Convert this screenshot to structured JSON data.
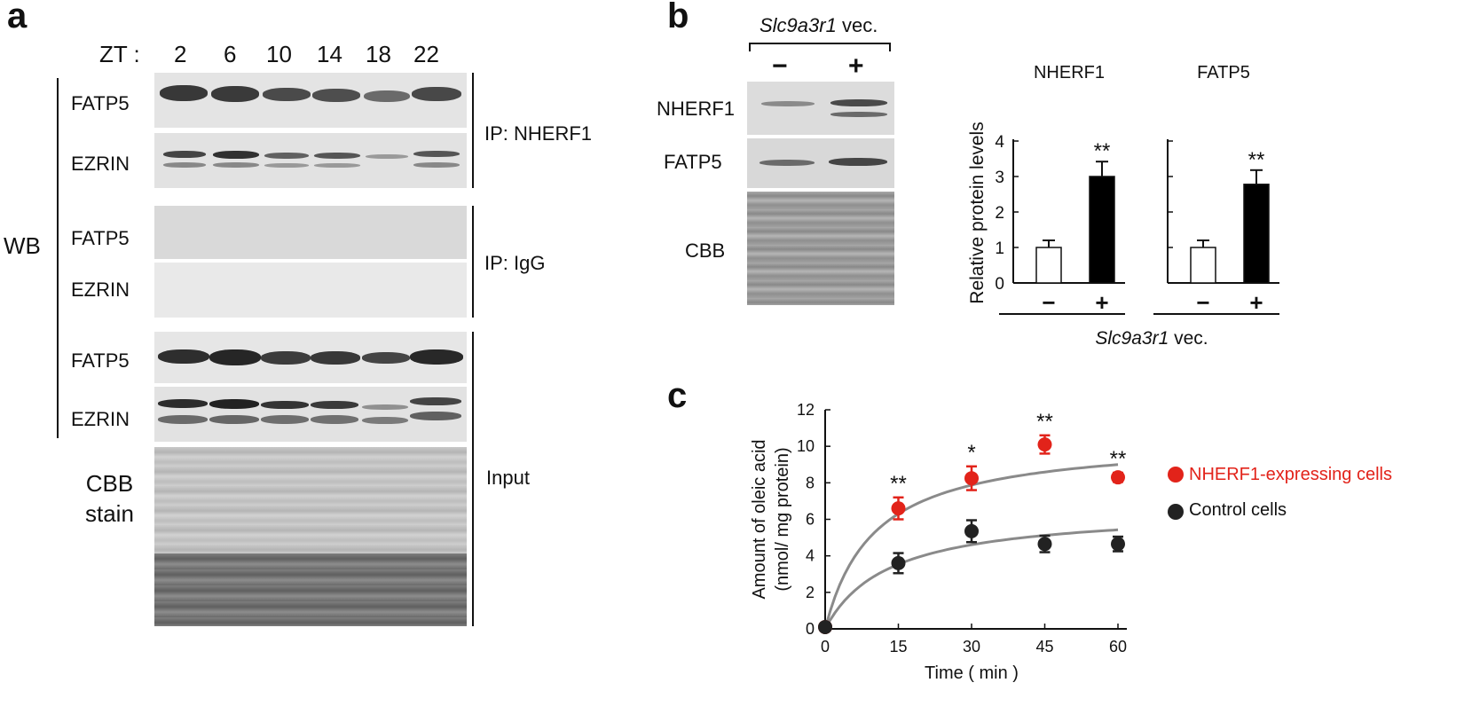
{
  "panel_a": {
    "label": "a",
    "zt_label": "ZT :",
    "zt_values": [
      "2",
      "6",
      "10",
      "14",
      "18",
      "22"
    ],
    "rows": [
      "FATP5",
      "EZRIN",
      "FATP5",
      "EZRIN",
      "FATP5",
      "EZRIN"
    ],
    "cbb": [
      "CBB",
      "stain"
    ],
    "wb_label": "WB",
    "ip_nherf1": "IP: NHERF1",
    "ip_igg": "IP: IgG",
    "input": "Input"
  },
  "panel_b": {
    "label": "b",
    "vec_italic": "Slc9a3r1",
    "vec_rest": " vec.",
    "minus": "−",
    "plus": "+",
    "rows": [
      "NHERF1",
      "FATP5",
      "CBB"
    ]
  },
  "panel_c_label": "c",
  "chart_data": [
    {
      "type": "bar",
      "title": "NHERF1",
      "ylabel": "Relative protein levels",
      "ylim": [
        0,
        4
      ],
      "yticks": [
        "0",
        "1",
        "2",
        "3",
        "4"
      ],
      "categories": [
        "−",
        "+"
      ],
      "values": [
        1.0,
        3.0
      ],
      "errors": [
        0.2,
        0.42
      ],
      "significance": [
        "",
        "**"
      ],
      "bar_colors": [
        "#ffffff",
        "#000000"
      ],
      "xlabel_italic": "Slc9a3r1",
      "xlabel_rest": " vec."
    },
    {
      "type": "bar",
      "title": "FATP5",
      "ylim": [
        0,
        4
      ],
      "categories": [
        "−",
        "+"
      ],
      "values": [
        1.0,
        2.78
      ],
      "errors": [
        0.2,
        0.4
      ],
      "significance": [
        "",
        "**"
      ],
      "bar_colors": [
        "#ffffff",
        "#000000"
      ]
    },
    {
      "type": "scatter",
      "xlabel": "Time ( min )",
      "ylabel_line1": "Amount of oleic acid",
      "ylabel_line2": "(nmol/ mg protein)",
      "xlim": [
        0,
        60
      ],
      "ylim": [
        0,
        12
      ],
      "xticks": [
        "0",
        "15",
        "30",
        "45",
        "60"
      ],
      "yticks": [
        "0",
        "2",
        "4",
        "6",
        "8",
        "10",
        "12"
      ],
      "legend_position": "right",
      "series": [
        {
          "name": "NHERF1-expressing cells",
          "color": "#e2231a",
          "x": [
            0,
            15,
            30,
            45,
            60
          ],
          "y": [
            0.1,
            6.6,
            8.25,
            10.1,
            8.3
          ],
          "err": [
            0.1,
            0.6,
            0.65,
            0.5,
            0.25
          ],
          "significance": [
            "",
            "**",
            "*",
            "**",
            "**"
          ],
          "fit_vmax": 10.5,
          "fit_km": 10
        },
        {
          "name": "Control cells",
          "color": "#222222",
          "x": [
            0,
            15,
            30,
            45,
            60
          ],
          "y": [
            0.1,
            3.6,
            5.35,
            4.65,
            4.65
          ],
          "err": [
            0.1,
            0.55,
            0.6,
            0.45,
            0.4
          ],
          "significance": [
            "",
            "",
            "",
            "",
            ""
          ],
          "fit_vmax": 6.6,
          "fit_km": 13
        }
      ]
    }
  ]
}
